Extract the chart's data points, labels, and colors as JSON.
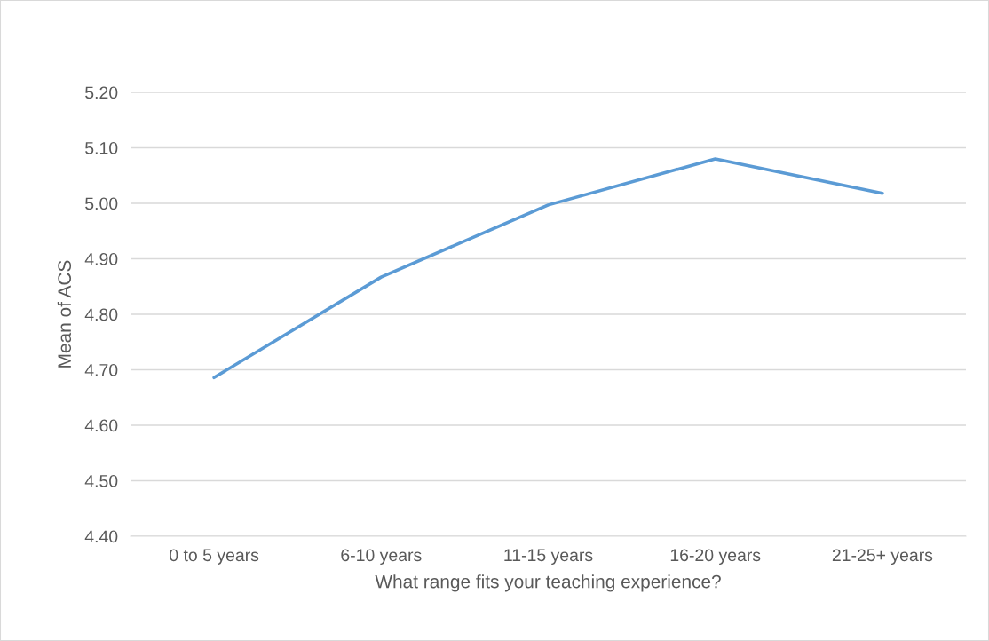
{
  "chart_data": {
    "type": "line",
    "xlabel": "What range fits your teaching experience?",
    "ylabel": "Mean of ACS",
    "categories": [
      "0 to 5 years",
      "6-10 years",
      "11-15 years",
      "16-20 years",
      "21-25+ years"
    ],
    "series": [
      {
        "color": "#5b9bd5",
        "values": [
          4.686,
          4.867,
          4.997,
          5.08,
          5.018
        ]
      }
    ],
    "ylim": [
      4.4,
      5.2
    ],
    "yticks": [
      {
        "value": 4.4,
        "label": "4.40"
      },
      {
        "value": 4.5,
        "label": "4.50"
      },
      {
        "value": 4.6,
        "label": "4.60"
      },
      {
        "value": 4.7,
        "label": "4.70"
      },
      {
        "value": 4.8,
        "label": "4.80"
      },
      {
        "value": 4.9,
        "label": "4.90"
      },
      {
        "value": 5.0,
        "label": "5.00"
      },
      {
        "value": 5.1,
        "label": "5.10"
      },
      {
        "value": 5.2,
        "label": "5.20"
      }
    ],
    "grid": "y",
    "marker": "none",
    "line_style": "solid"
  }
}
